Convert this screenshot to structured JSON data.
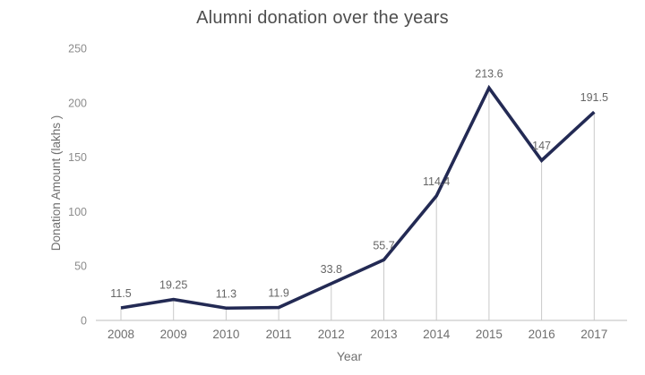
{
  "chart_data": {
    "type": "line",
    "title": "Alumni donation over the years",
    "xlabel": "Year",
    "ylabel": "Donation Amount (lakhs )",
    "categories": [
      "2008",
      "2009",
      "2010",
      "2011",
      "2012",
      "2013",
      "2014",
      "2015",
      "2016",
      "2017"
    ],
    "values": [
      11.5,
      19.25,
      11.3,
      11.9,
      33.8,
      55.7,
      114.4,
      213.6,
      147,
      191.5
    ],
    "value_labels": [
      "11.5",
      "19.25",
      "11.3",
      "11.9",
      "33.8",
      "55.7",
      "114.4",
      "213.6",
      "147",
      "191.5"
    ],
    "ylim": [
      0,
      250
    ],
    "yticks": [
      "0",
      "50",
      "100",
      "150",
      "200",
      "250"
    ],
    "grid": false,
    "legend": false,
    "drop_lines": true,
    "colors": {
      "line": "#232a54",
      "axis": "#c9c9c9",
      "drop_line": "#c9c9c9",
      "title_text": "#4e4e4e",
      "axis_title_text": "#6f6f6f",
      "y_tick_text": "#8c8c8c",
      "x_tick_text": "#6e6e6e",
      "data_label_text": "#666666"
    }
  }
}
